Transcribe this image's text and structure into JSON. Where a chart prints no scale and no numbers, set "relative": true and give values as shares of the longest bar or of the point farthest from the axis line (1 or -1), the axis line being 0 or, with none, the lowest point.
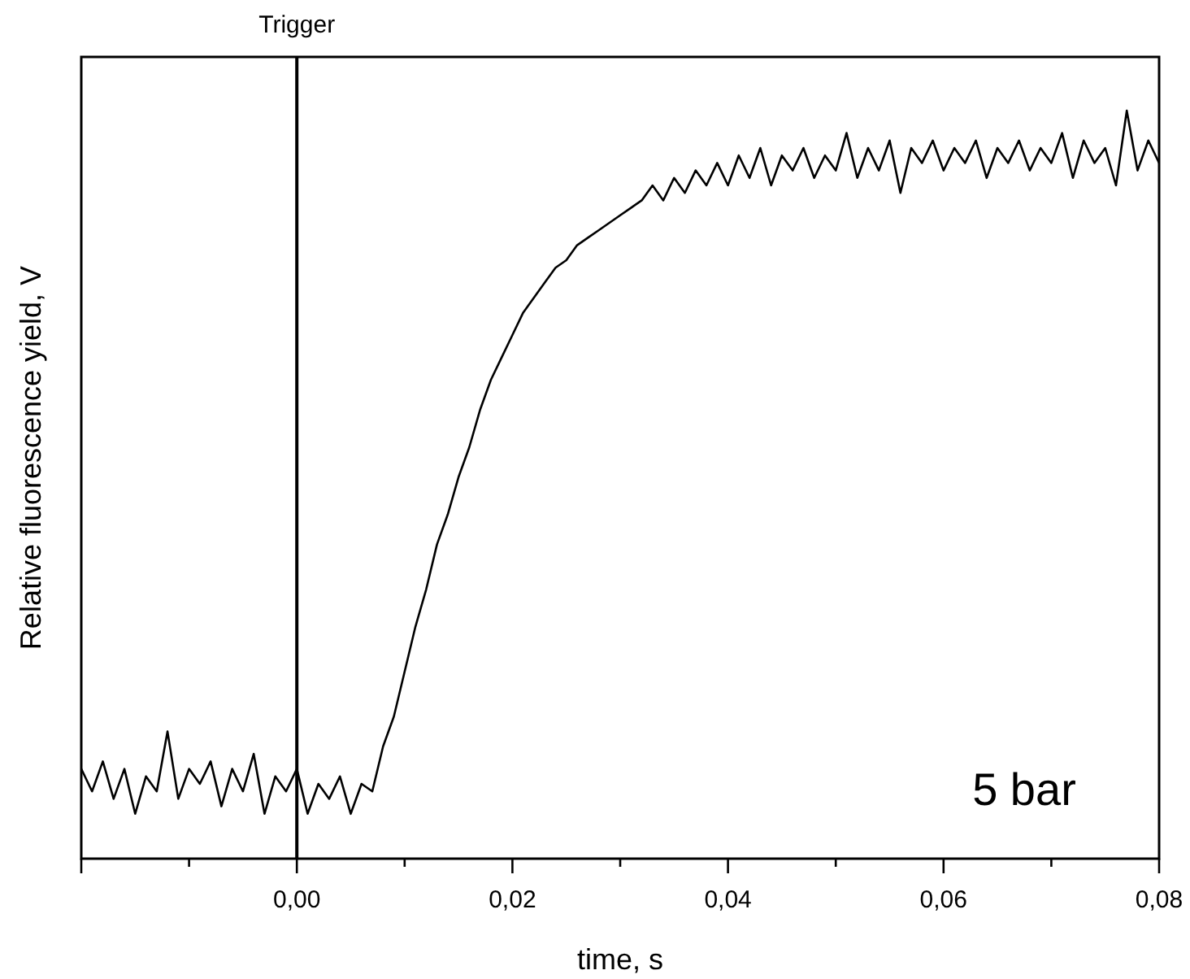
{
  "chart_data": {
    "type": "line",
    "relative": true,
    "xlabel": "time, s",
    "ylabel": "Relative fluorescence yield, V",
    "xlim": [
      -0.02,
      0.08
    ],
    "xticks": [
      {
        "value": -0.02,
        "label": null
      },
      {
        "value": -0.01,
        "label": null
      },
      {
        "value": 0,
        "label": "0,00"
      },
      {
        "value": 0.01,
        "label": null
      },
      {
        "value": 0.02,
        "label": "0,02"
      },
      {
        "value": 0.03,
        "label": null
      },
      {
        "value": 0.04,
        "label": "0,04"
      },
      {
        "value": 0.05,
        "label": null
      },
      {
        "value": 0.06,
        "label": "0,06"
      },
      {
        "value": 0.07,
        "label": null
      },
      {
        "value": 0.08,
        "label": "0,08"
      }
    ],
    "tick_labels": "x",
    "grid": false,
    "marker": "none",
    "line_style": "solid",
    "ref_lines": [
      {
        "axis": "x",
        "value": 0,
        "label": "Trigger",
        "color": "#000000"
      }
    ],
    "annotations": [
      "5 bar"
    ],
    "series": [
      {
        "color": "#000000",
        "x": [
          -0.02,
          -0.019,
          -0.018,
          -0.017,
          -0.016,
          -0.015,
          -0.014,
          -0.013,
          -0.012,
          -0.011,
          -0.01,
          -0.009,
          -0.008,
          -0.007,
          -0.006,
          -0.005,
          -0.004,
          -0.003,
          -0.002,
          -0.001,
          0.0,
          0.001,
          0.002,
          0.003,
          0.004,
          0.005,
          0.006,
          0.007,
          0.008,
          0.009,
          0.01,
          0.011,
          0.012,
          0.013,
          0.014,
          0.015,
          0.016,
          0.017,
          0.018,
          0.019,
          0.02,
          0.021,
          0.022,
          0.023,
          0.024,
          0.025,
          0.026,
          0.027,
          0.028,
          0.029,
          0.03,
          0.031,
          0.032,
          0.033,
          0.034,
          0.035,
          0.036,
          0.037,
          0.038,
          0.039,
          0.04,
          0.041,
          0.042,
          0.043,
          0.044,
          0.045,
          0.046,
          0.047,
          0.048,
          0.049,
          0.05,
          0.051,
          0.052,
          0.053,
          0.054,
          0.055,
          0.056,
          0.057,
          0.058,
          0.059,
          0.06,
          0.061,
          0.062,
          0.063,
          0.064,
          0.065,
          0.066,
          0.067,
          0.068,
          0.069,
          0.07,
          0.071,
          0.072,
          0.073,
          0.074,
          0.075,
          0.076,
          0.077,
          0.078,
          0.079,
          0.08
        ],
        "values": [
          0.12,
          0.09,
          0.13,
          0.08,
          0.12,
          0.06,
          0.11,
          0.09,
          0.17,
          0.08,
          0.12,
          0.1,
          0.13,
          0.07,
          0.12,
          0.09,
          0.14,
          0.06,
          0.11,
          0.09,
          0.12,
          0.06,
          0.1,
          0.08,
          0.11,
          0.06,
          0.1,
          0.09,
          0.15,
          0.19,
          0.25,
          0.31,
          0.36,
          0.42,
          0.46,
          0.51,
          0.55,
          0.6,
          0.64,
          0.67,
          0.7,
          0.73,
          0.75,
          0.77,
          0.79,
          0.8,
          0.82,
          0.83,
          0.84,
          0.85,
          0.86,
          0.87,
          0.88,
          0.9,
          0.88,
          0.91,
          0.89,
          0.92,
          0.9,
          0.93,
          0.9,
          0.94,
          0.91,
          0.95,
          0.9,
          0.94,
          0.92,
          0.95,
          0.91,
          0.94,
          0.92,
          0.97,
          0.91,
          0.95,
          0.92,
          0.96,
          0.89,
          0.95,
          0.93,
          0.96,
          0.92,
          0.95,
          0.93,
          0.96,
          0.91,
          0.95,
          0.93,
          0.96,
          0.92,
          0.95,
          0.93,
          0.97,
          0.91,
          0.96,
          0.93,
          0.95,
          0.9,
          1.0,
          0.92,
          0.96,
          0.93
        ]
      }
    ]
  }
}
